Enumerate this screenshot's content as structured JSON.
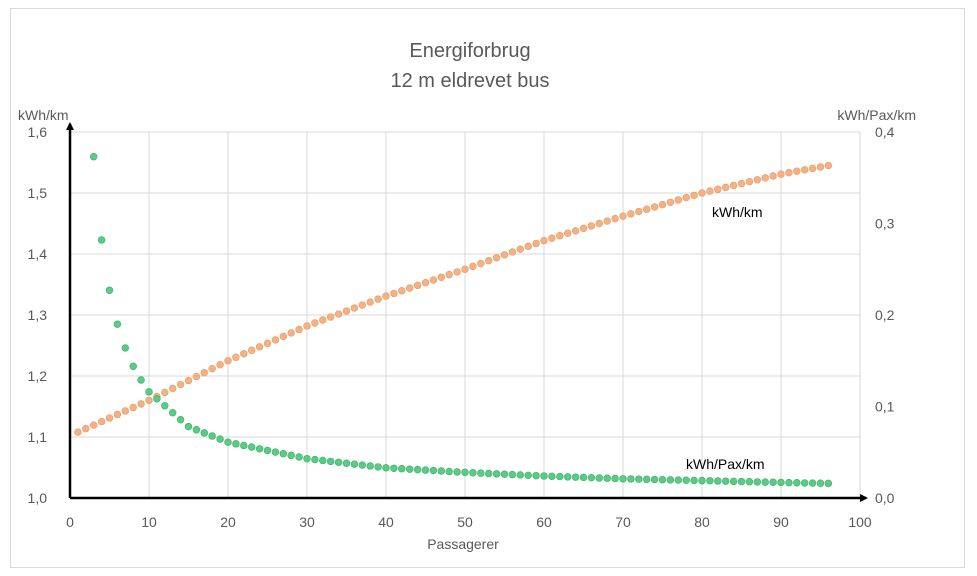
{
  "colors": {
    "series1": "#F4B183",
    "series2": "#5ACB85",
    "grid": "#d9d9d9",
    "axis": "#000000",
    "text": "#595959"
  },
  "chart_data": {
    "type": "scatter",
    "title": "Energiforbrug",
    "subtitle": "12 m eldrevet bus",
    "xlabel": "Passagerer",
    "ylabel_left": "kWh/km",
    "ylabel_right": "kWh/Pax/km",
    "xlim": [
      0,
      100
    ],
    "ylim_left": [
      1.0,
      1.6
    ],
    "ylim_right": [
      0.0,
      0.4
    ],
    "x_ticks": [
      "0",
      "10",
      "20",
      "30",
      "40",
      "50",
      "60",
      "70",
      "80",
      "90",
      "100"
    ],
    "y_left_ticks": [
      "1,0",
      "1,1",
      "1,2",
      "1,3",
      "1,4",
      "1,5",
      "1,6"
    ],
    "y_right_ticks": [
      "0,0",
      "0,1",
      "0,2",
      "0,3",
      "0,4"
    ],
    "grid": true,
    "legend": "none",
    "series": [
      {
        "name": "kWh/km",
        "axis": "left",
        "x_start": 1,
        "x_end": 96,
        "note_values": "kWh/km rises from about 1.108 at 1 passenger to about 1.545 at 96 passengers",
        "points": [
          [
            1,
            1.108
          ],
          [
            10,
            1.16
          ],
          [
            20,
            1.225
          ],
          [
            30,
            1.282
          ],
          [
            40,
            1.331
          ],
          [
            50,
            1.375
          ],
          [
            60,
            1.422
          ],
          [
            70,
            1.462
          ],
          [
            80,
            1.5
          ],
          [
            90,
            1.531
          ],
          [
            96,
            1.545
          ]
        ]
      },
      {
        "name": "kWh/Pax/km",
        "axis": "right",
        "x_start": 3,
        "x_end": 96,
        "note_values": "kWh/Pax/km = kWh/km divided by passenger count",
        "points": [
          [
            3,
            0.373
          ],
          [
            4,
            0.282
          ],
          [
            5,
            0.227
          ],
          [
            6,
            0.19
          ],
          [
            7,
            0.164
          ],
          [
            8,
            0.144
          ],
          [
            9,
            0.129
          ],
          [
            10,
            0.116
          ],
          [
            15,
            0.078
          ],
          [
            20,
            0.061
          ],
          [
            30,
            0.043
          ],
          [
            40,
            0.033
          ],
          [
            50,
            0.028
          ],
          [
            60,
            0.024
          ],
          [
            70,
            0.021
          ],
          [
            80,
            0.019
          ],
          [
            90,
            0.017
          ],
          [
            96,
            0.016
          ]
        ]
      }
    ]
  }
}
